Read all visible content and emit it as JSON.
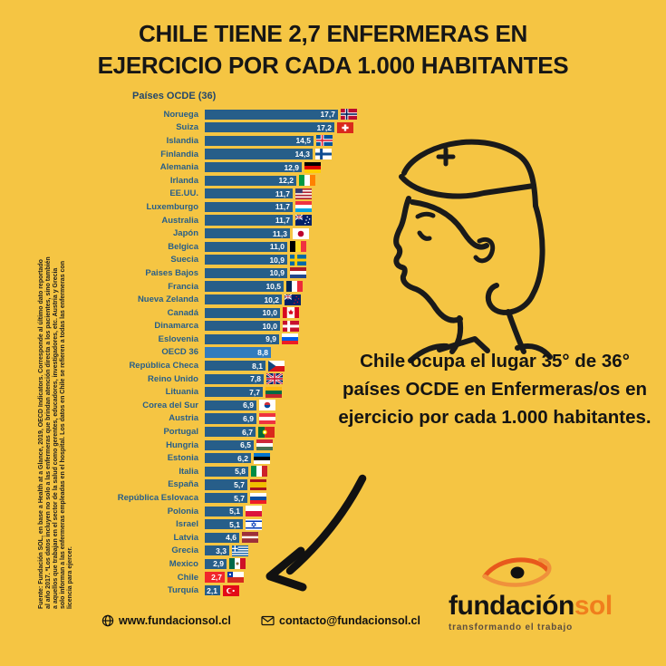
{
  "title": {
    "line1": "CHILE TIENE 2,7 ENFERMERAS EN",
    "line2": "EJERCICIO POR CADA 1.000 HABITANTES"
  },
  "chart_data": {
    "type": "bar",
    "orientation": "horizontal",
    "title": "Países OCDE (36)",
    "unit": "enfermeras en ejercicio por cada 1.000 habitantes",
    "xlim": [
      0,
      18
    ],
    "grid": false,
    "legend": "none",
    "rows": [
      {
        "country": "Noruega",
        "value": 17.7,
        "display": "17,7",
        "flag": {
          "t": "nordic",
          "bg": "#BA0C2F",
          "cross": "#fff",
          "inner": "#00205B"
        }
      },
      {
        "country": "Suiza",
        "value": 17.2,
        "display": "17,2",
        "flag": {
          "t": "plus",
          "bg": "#DA291C",
          "cross": "#fff"
        }
      },
      {
        "country": "Islandia",
        "value": 14.5,
        "display": "14,5",
        "flag": {
          "t": "nordic",
          "bg": "#02529C",
          "cross": "#fff",
          "inner": "#DC1E35"
        }
      },
      {
        "country": "Finlandia",
        "value": 14.3,
        "display": "14,3",
        "flag": {
          "t": "nordic",
          "bg": "#ffffff",
          "cross": "#0E4C92"
        }
      },
      {
        "country": "Alemania",
        "value": 12.9,
        "display": "12,9",
        "flag": {
          "t": "h",
          "c": [
            "#000000",
            "#DD0000",
            "#FFCE00"
          ]
        }
      },
      {
        "country": "Irlanda",
        "value": 12.2,
        "display": "12,2",
        "flag": {
          "t": "v",
          "c": [
            "#009A44",
            "#ffffff",
            "#FF8200"
          ]
        }
      },
      {
        "country": "EE.UU.",
        "value": 11.7,
        "display": "11,7",
        "flag": {
          "t": "us"
        }
      },
      {
        "country": "Luxemburgo",
        "value": 11.7,
        "display": "11,7",
        "flag": {
          "t": "h",
          "c": [
            "#EF3340",
            "#ffffff",
            "#00A3E0"
          ]
        }
      },
      {
        "country": "Australia",
        "value": 11.7,
        "display": "11,7",
        "flag": {
          "t": "aussie",
          "star": "#ffffff"
        }
      },
      {
        "country": "Japón",
        "value": 11.3,
        "display": "11,3",
        "flag": {
          "t": "disc",
          "bg": "#ffffff",
          "disc": "#BC002D"
        }
      },
      {
        "country": "Belgica",
        "value": 11.0,
        "display": "11,0",
        "flag": {
          "t": "v",
          "c": [
            "#000000",
            "#FDDA24",
            "#EF3340"
          ]
        }
      },
      {
        "country": "Suecia",
        "value": 10.9,
        "display": "10,9",
        "flag": {
          "t": "nordic",
          "bg": "#006AA7",
          "cross": "#FECC02"
        }
      },
      {
        "country": "Paises Bajos",
        "value": 10.9,
        "display": "10,9",
        "flag": {
          "t": "h",
          "c": [
            "#AE1C28",
            "#ffffff",
            "#21468B"
          ]
        }
      },
      {
        "country": "Francia",
        "value": 10.5,
        "display": "10,5",
        "flag": {
          "t": "v",
          "c": [
            "#002654",
            "#ffffff",
            "#ED2939"
          ]
        }
      },
      {
        "country": "Nueva Zelanda",
        "value": 10.2,
        "display": "10,2",
        "flag": {
          "t": "aussie",
          "star": "#C8102E"
        }
      },
      {
        "country": "Canadá",
        "value": 10.0,
        "display": "10,0",
        "flag": {
          "t": "canada"
        }
      },
      {
        "country": "Dinamarca",
        "value": 10.0,
        "display": "10,0",
        "flag": {
          "t": "nordic",
          "bg": "#C8102E",
          "cross": "#fff"
        }
      },
      {
        "country": "Eslovenia",
        "value": 9.9,
        "display": "9,9",
        "flag": {
          "t": "h",
          "c": [
            "#ffffff",
            "#005CE7",
            "#ED1C24"
          ],
          "badge": {
            "x": 8,
            "y": 6.5,
            "c": "#005CE7"
          }
        }
      },
      {
        "country": "OECD 36",
        "value": 8.8,
        "display": "8,8",
        "flag": null,
        "color": "#327CBE"
      },
      {
        "country": "República Checa",
        "value": 8.1,
        "display": "8,1",
        "flag": {
          "t": "cz"
        }
      },
      {
        "country": "Reino Unido",
        "value": 7.8,
        "display": "7,8",
        "flag": {
          "t": "uk"
        }
      },
      {
        "country": "Lituania",
        "value": 7.7,
        "display": "7,7",
        "flag": {
          "t": "h",
          "c": [
            "#FDB913",
            "#006A44",
            "#C1272D"
          ]
        }
      },
      {
        "country": "Corea del Sur",
        "value": 6.9,
        "display": "6,9",
        "flag": {
          "t": "kr"
        }
      },
      {
        "country": "Austria",
        "value": 6.9,
        "display": "6,9",
        "flag": {
          "t": "h",
          "c": [
            "#EF3340",
            "#ffffff",
            "#EF3340"
          ]
        }
      },
      {
        "country": "Portugal",
        "value": 6.7,
        "display": "6,7",
        "flag": {
          "t": "pt"
        }
      },
      {
        "country": "Hungria",
        "value": 6.5,
        "display": "6,5",
        "flag": {
          "t": "h",
          "c": [
            "#CE2939",
            "#ffffff",
            "#477050"
          ]
        }
      },
      {
        "country": "Estonia",
        "value": 6.2,
        "display": "6,2",
        "flag": {
          "t": "h",
          "c": [
            "#0072CE",
            "#000000",
            "#ffffff"
          ]
        }
      },
      {
        "country": "Italia",
        "value": 5.8,
        "display": "5,8",
        "flag": {
          "t": "v",
          "c": [
            "#008C45",
            "#ffffff",
            "#CD212A"
          ]
        }
      },
      {
        "country": "España",
        "value": 5.7,
        "display": "5,7",
        "flag": {
          "t": "h",
          "c": [
            "#AA151B",
            "#F1BF00",
            "#AA151B"
          ],
          "w": [
            1,
            2,
            1
          ],
          "badge": {
            "x": 9,
            "y": 10,
            "c": "#AA151B"
          }
        }
      },
      {
        "country": "República Eslovaca",
        "value": 5.7,
        "display": "5,7",
        "flag": {
          "t": "h",
          "c": [
            "#ffffff",
            "#0B4EA2",
            "#EE1C25"
          ],
          "badge": {
            "x": 9,
            "y": 11,
            "c": "#EE1C25"
          }
        }
      },
      {
        "country": "Polonia",
        "value": 5.1,
        "display": "5,1",
        "flag": {
          "t": "h",
          "c": [
            "#ffffff",
            "#DC143C"
          ]
        }
      },
      {
        "country": "Israel",
        "value": 5.1,
        "display": "5,1",
        "flag": {
          "t": "il"
        }
      },
      {
        "country": "Latvia",
        "value": 4.6,
        "display": "4,6",
        "flag": {
          "t": "h",
          "c": [
            "#9E3039",
            "#ffffff",
            "#9E3039"
          ],
          "w": [
            2,
            1,
            2
          ]
        }
      },
      {
        "country": "Grecia",
        "value": 3.3,
        "display": "3,3",
        "flag": {
          "t": "gr"
        }
      },
      {
        "country": "Mexico",
        "value": 2.9,
        "display": "2,9",
        "flag": {
          "t": "mx"
        }
      },
      {
        "country": "Chile",
        "value": 2.7,
        "display": "2,7",
        "flag": {
          "t": "cl"
        },
        "color": "#F1272B"
      },
      {
        "country": "Turquía",
        "value": 2.1,
        "display": "2,1",
        "flag": {
          "t": "tr"
        }
      }
    ]
  },
  "annotation": {
    "text": "Chile ocupa el lugar 35° de 36° países OCDE en Enfermeras/os en ejercicio por cada 1.000 habitantes."
  },
  "source": {
    "label": "Fuente:",
    "text": "Fundación SOL, en base a Health at a Glance, 2019, OECD Indicators. Corresponde al último dato reportado al año 2017. *Los datos incluyen no solo a las enfermeras que brindan atención directa a los pacientes, sino también a aquellos que trabajan en el sector de la salud como gerentes, educadores, investigadores, etc. Austria y Grecia solo informan a las enfermeras empleadas en el hospital. Los datos en Chile se refieren a todas las enfermeras con licencia para ejercer."
  },
  "footer": {
    "website": "www.fundacionsol.cl",
    "email": "contacto@fundacionsol.cl"
  },
  "logo": {
    "name_black": "fundación",
    "name_orange": "sol",
    "tagline": "transformando el trabajo"
  },
  "colors": {
    "background": "#F5C543",
    "bar": "#275E89",
    "bar_oecd": "#327CBE",
    "bar_chile": "#F1272B",
    "label_text": "#275E89",
    "value_text": "#FFFFFF",
    "title_text": "#161616",
    "logo_orange": "#F07E1D"
  }
}
